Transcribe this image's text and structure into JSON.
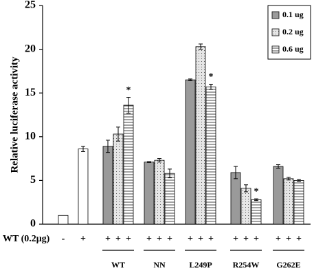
{
  "chart_data": {
    "type": "bar",
    "ylabel": "Relative luciferase activity",
    "ylim": [
      0,
      25
    ],
    "yticks": [
      0,
      5,
      10,
      15,
      20,
      25
    ],
    "categories": [
      "WT",
      "NN",
      "L249P",
      "R254W",
      "G262E"
    ],
    "series": [
      {
        "name": "0.1 ug",
        "color": "#9a9a9a",
        "pattern": "solid",
        "values": [
          8.9,
          7.1,
          16.5,
          5.9,
          6.6
        ],
        "errors": [
          0.7,
          0.05,
          0.1,
          0.7,
          0.2
        ],
        "annotations": [
          null,
          null,
          null,
          null,
          null
        ]
      },
      {
        "name": "0.2 ug",
        "color": "#e6e6e6",
        "pattern": "dots",
        "values": [
          10.3,
          7.3,
          20.3,
          4.1,
          5.2
        ],
        "errors": [
          0.8,
          0.2,
          0.3,
          0.4,
          0.15
        ],
        "annotations": [
          null,
          null,
          null,
          null,
          null
        ]
      },
      {
        "name": "0.6 ug",
        "color": "#ffffff",
        "pattern": "hlines",
        "values": [
          13.6,
          5.8,
          15.7,
          2.8,
          5.0
        ],
        "errors": [
          0.9,
          0.5,
          0.3,
          0.1,
          0.1
        ],
        "annotations": [
          "*",
          null,
          "*",
          "*",
          null
        ]
      }
    ],
    "controls": {
      "color": "#ffffff",
      "values": [
        1,
        8.6
      ],
      "errors": [
        null,
        0.3
      ],
      "signs": [
        "-",
        "+"
      ]
    },
    "treatment_label": "WT (0.2μg)",
    "group_signs": [
      [
        "+",
        "+",
        "+"
      ],
      [
        "+",
        "+",
        "+"
      ],
      [
        "+",
        "+",
        "+"
      ],
      [
        "+",
        "+",
        "+"
      ],
      [
        "+",
        "+",
        "+"
      ]
    ],
    "legend": "top-right"
  }
}
